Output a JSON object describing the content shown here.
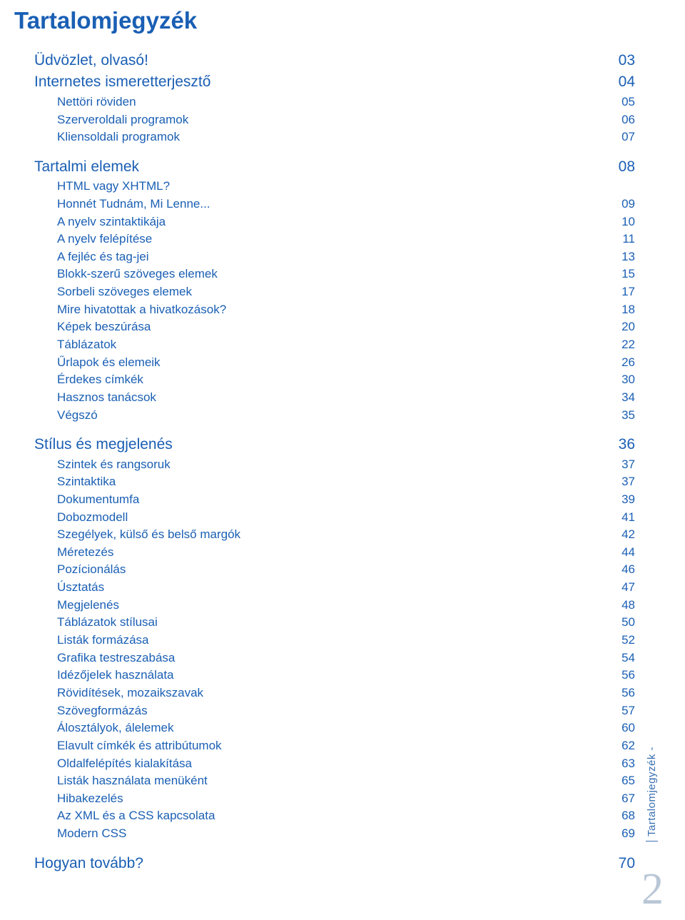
{
  "colors": {
    "blue": "#1a5fb4",
    "gray_num": "#b9c6d6",
    "side": "#3a6fb0",
    "bg": "#ffffff"
  },
  "title": "Tartalomjegyzék",
  "side_label": "Tartalomjegyzék -",
  "page_number": "2",
  "sections": [
    {
      "rows": [
        {
          "level": 0,
          "label": "Üdvözlet, olvasó!",
          "page": "03"
        },
        {
          "level": 0,
          "label": "Internetes ismeretterjesztő",
          "page": "04"
        },
        {
          "level": 1,
          "label": "Nettöri röviden",
          "page": "05"
        },
        {
          "level": 1,
          "label": "Szerveroldali programok",
          "page": "06"
        },
        {
          "level": 1,
          "label": "Kliensoldali programok",
          "page": "07"
        }
      ]
    },
    {
      "rows": [
        {
          "level": 0,
          "label": "Tartalmi elemek",
          "page": "08"
        },
        {
          "level": 1,
          "label": "HTML vagy XHTML?",
          "page": ""
        },
        {
          "level": 1,
          "label": "Honnét Tudnám, Mi Lenne...",
          "page": "09"
        },
        {
          "level": 1,
          "label": "A nyelv szintaktikája",
          "page": "10"
        },
        {
          "level": 1,
          "label": "A nyelv felépítése",
          "page": "11"
        },
        {
          "level": 1,
          "label": "A fejléc és tag-jei",
          "page": "13"
        },
        {
          "level": 1,
          "label": "Blokk-szerű szöveges elemek",
          "page": "15"
        },
        {
          "level": 1,
          "label": "Sorbeli szöveges elemek",
          "page": "17"
        },
        {
          "level": 1,
          "label": "Mire hivatottak a hivatkozások?",
          "page": "18"
        },
        {
          "level": 1,
          "label": "Képek beszúrása",
          "page": "20"
        },
        {
          "level": 1,
          "label": "Táblázatok",
          "page": "22"
        },
        {
          "level": 1,
          "label": "Űrlapok és elemeik",
          "page": "26"
        },
        {
          "level": 1,
          "label": "Érdekes címkék",
          "page": "30"
        },
        {
          "level": 1,
          "label": "Hasznos tanácsok",
          "page": "34"
        },
        {
          "level": 1,
          "label": "Végszó",
          "page": "35"
        }
      ]
    },
    {
      "rows": [
        {
          "level": 0,
          "label": "Stílus és megjelenés",
          "page": "36"
        },
        {
          "level": 1,
          "label": "Szintek és rangsoruk",
          "page": "37"
        },
        {
          "level": 1,
          "label": "Szintaktika",
          "page": "37"
        },
        {
          "level": 1,
          "label": "Dokumentumfa",
          "page": "39"
        },
        {
          "level": 1,
          "label": "Dobozmodell",
          "page": "41"
        },
        {
          "level": 1,
          "label": "Szegélyek, külső és belső margók",
          "page": "42"
        },
        {
          "level": 1,
          "label": "Méretezés",
          "page": "44"
        },
        {
          "level": 1,
          "label": "Pozícionálás",
          "page": "46"
        },
        {
          "level": 1,
          "label": "Úsztatás",
          "page": "47"
        },
        {
          "level": 1,
          "label": "Megjelenés",
          "page": "48"
        },
        {
          "level": 1,
          "label": "Táblázatok stílusai",
          "page": "50"
        },
        {
          "level": 1,
          "label": "Listák formázása",
          "page": "52"
        },
        {
          "level": 1,
          "label": "Grafika testreszabása",
          "page": "54"
        },
        {
          "level": 1,
          "label": "Idézőjelek használata",
          "page": "56"
        },
        {
          "level": 1,
          "label": "Rövidítések, mozaikszavak",
          "page": "56"
        },
        {
          "level": 1,
          "label": "Szövegformázás",
          "page": "57"
        },
        {
          "level": 1,
          "label": "Álosztályok, álelemek",
          "page": "60"
        },
        {
          "level": 1,
          "label": "Elavult címkék és attribútumok",
          "page": "62"
        },
        {
          "level": 1,
          "label": "Oldalfelépítés kialakítása",
          "page": "63"
        },
        {
          "level": 1,
          "label": "Listák használata menüként",
          "page": "65"
        },
        {
          "level": 1,
          "label": "Hibakezelés",
          "page": "67"
        },
        {
          "level": 1,
          "label": "Az XML és a CSS kapcsolata",
          "page": "68"
        },
        {
          "level": 1,
          "label": "Modern CSS",
          "page": "69"
        }
      ]
    },
    {
      "rows": [
        {
          "level": 0,
          "label": "Hogyan tovább?",
          "page": "70"
        }
      ]
    }
  ]
}
